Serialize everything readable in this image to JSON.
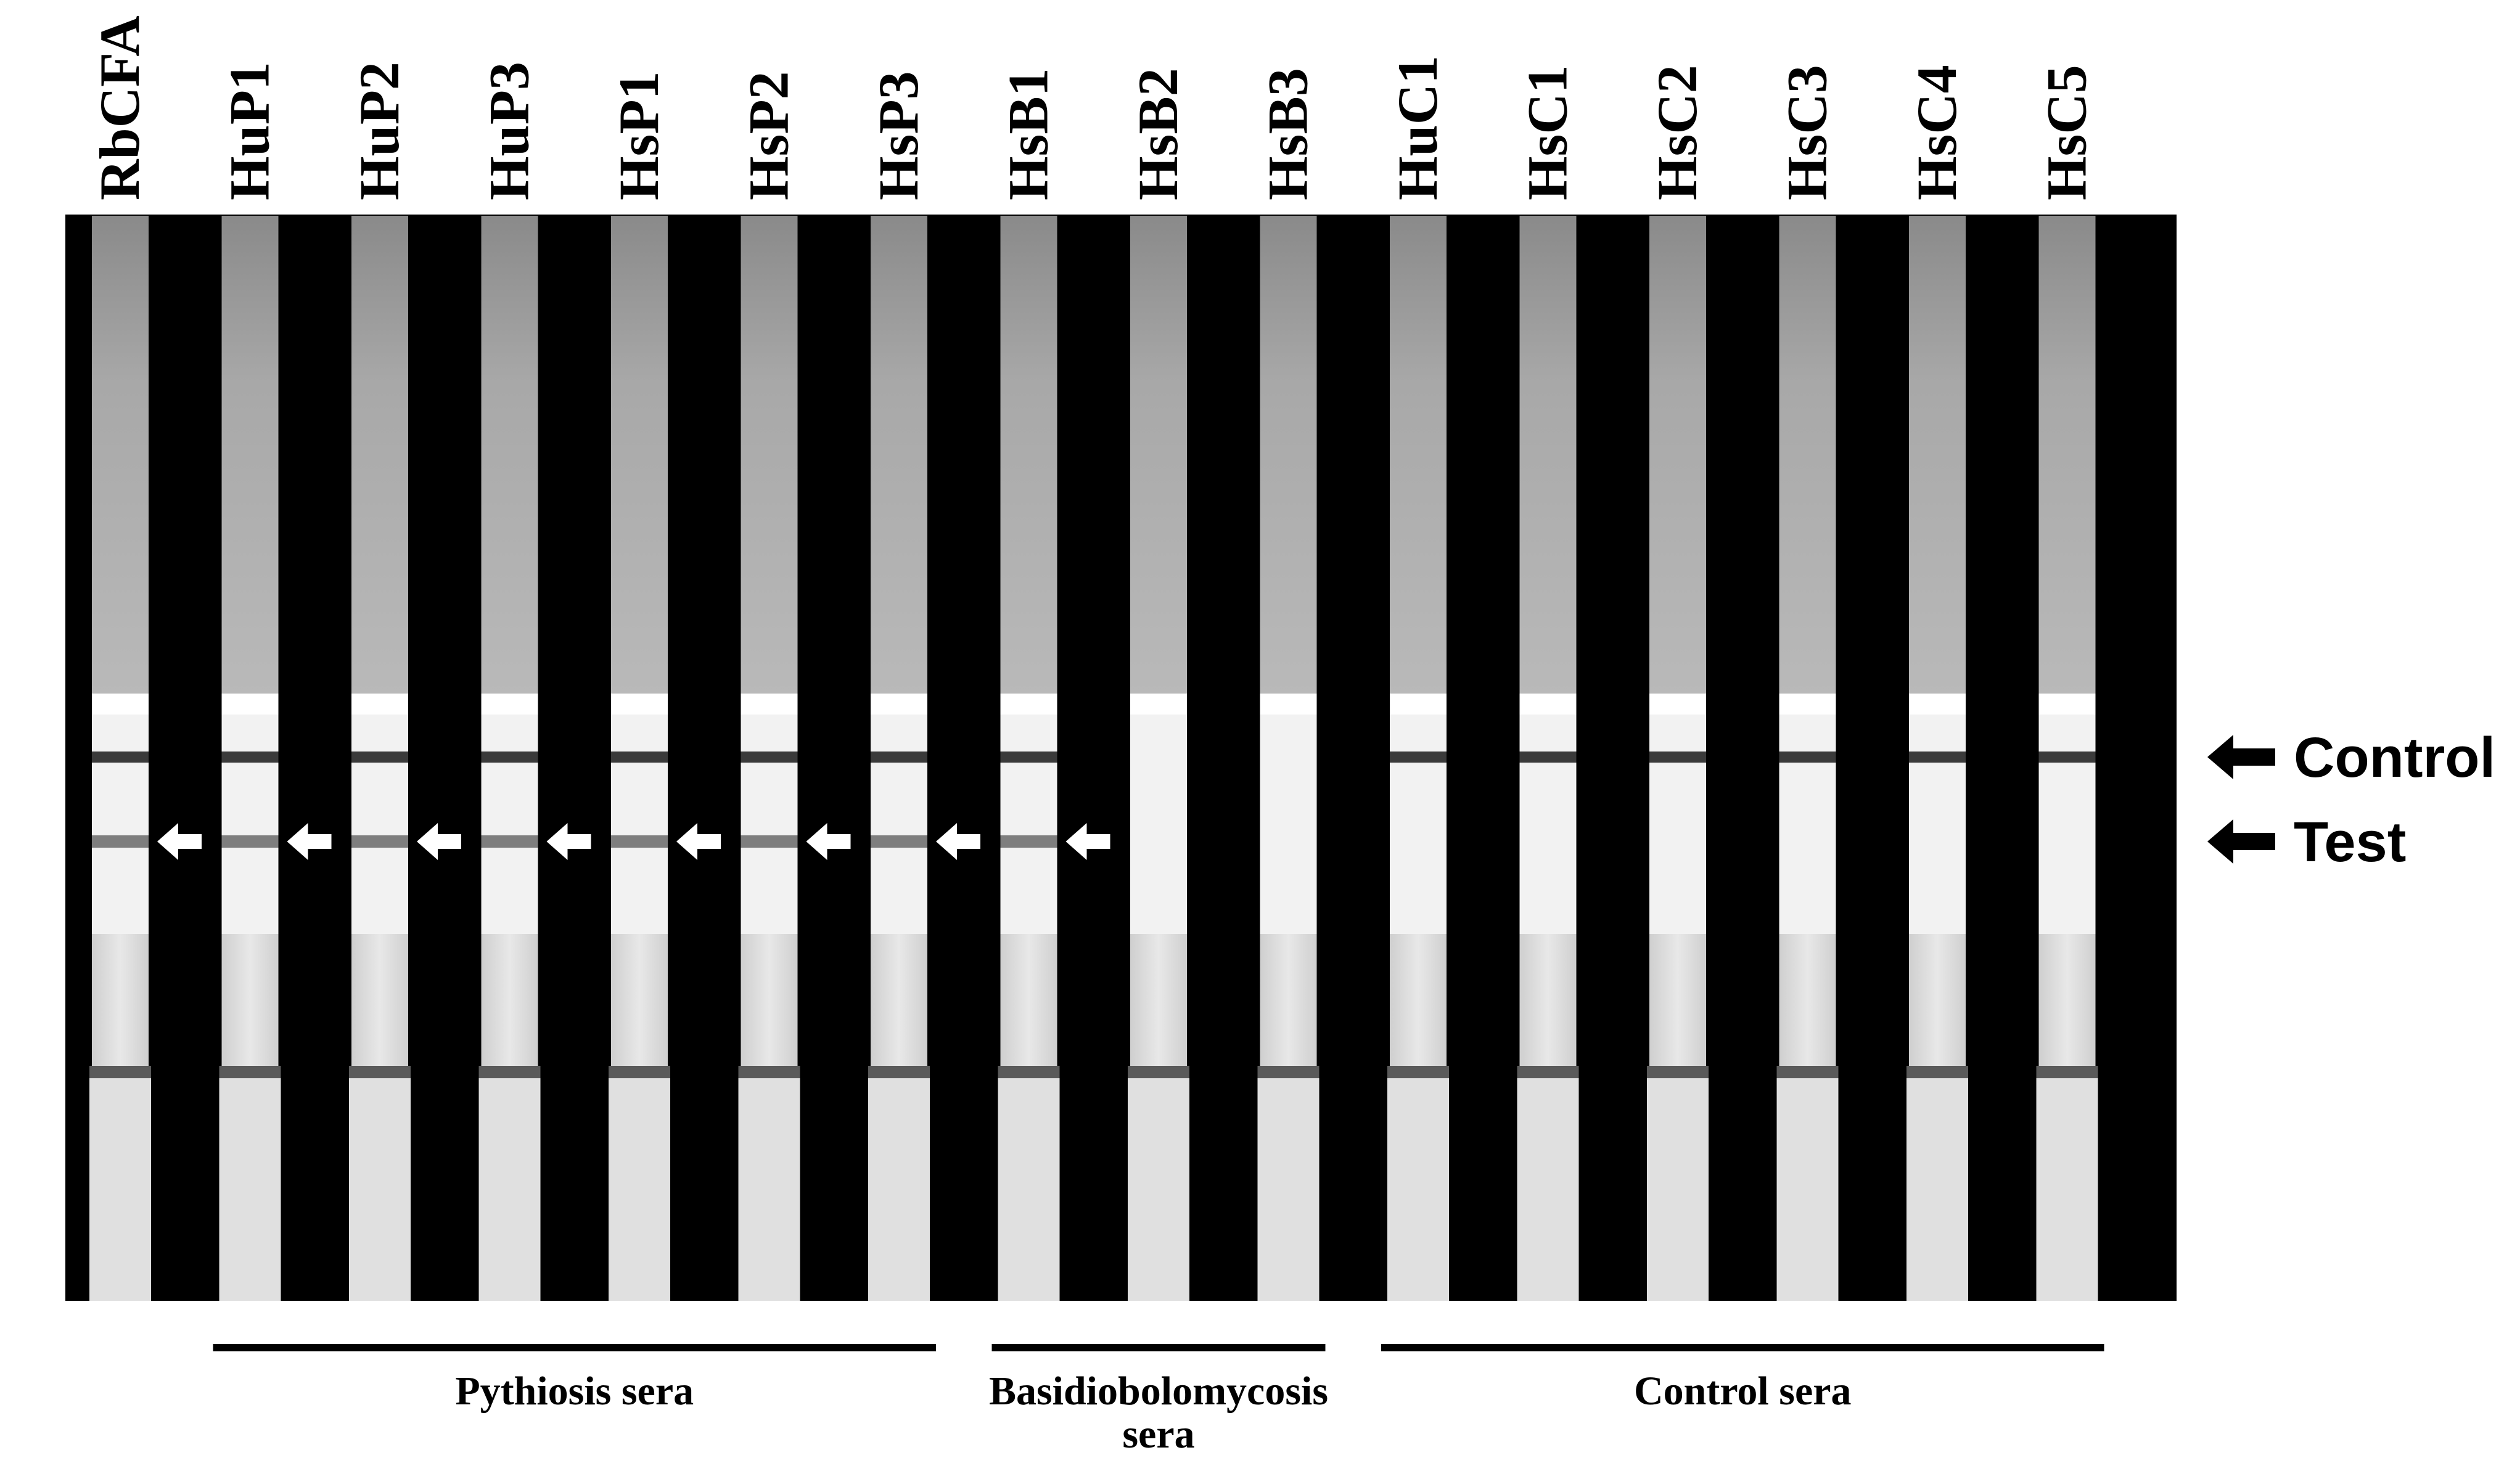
{
  "figure": {
    "lanes": [
      {
        "label": "RbCFA",
        "test_band": true,
        "control_band": true
      },
      {
        "label": "HuP1",
        "test_band": true,
        "control_band": true
      },
      {
        "label": "HuP2",
        "test_band": true,
        "control_band": true
      },
      {
        "label": "HuP3",
        "test_band": true,
        "control_band": true
      },
      {
        "label": "HsP1",
        "test_band": true,
        "control_band": true
      },
      {
        "label": "HsP2",
        "test_band": true,
        "control_band": true
      },
      {
        "label": "HsP3",
        "test_band": true,
        "control_band": true
      },
      {
        "label": "HsB1",
        "test_band": true,
        "control_band": true
      },
      {
        "label": "HsB2",
        "test_band": false,
        "control_band": false
      },
      {
        "label": "HsB3",
        "test_band": false,
        "control_band": false
      },
      {
        "label": "HuC1",
        "test_band": false,
        "control_band": true
      },
      {
        "label": "HsC1",
        "test_band": false,
        "control_band": true
      },
      {
        "label": "HsC2",
        "test_band": false,
        "control_band": true
      },
      {
        "label": "HsC3",
        "test_band": false,
        "control_band": true
      },
      {
        "label": "HsC4",
        "test_band": false,
        "control_band": true
      },
      {
        "label": "HsC5",
        "test_band": false,
        "control_band": true
      }
    ],
    "band_labels": {
      "control": "Control",
      "test": "Test"
    },
    "groups": [
      {
        "lines": [
          "Pythiosis sera"
        ],
        "first_lane": 1,
        "last_lane": 6
      },
      {
        "lines": [
          "Basidiobolomycosis",
          "sera"
        ],
        "first_lane": 7,
        "last_lane": 9
      },
      {
        "lines": [
          "Control sera"
        ],
        "first_lane": 10,
        "last_lane": 15
      }
    ],
    "colors": {
      "background": "#000000",
      "strip": "#e4e4e4",
      "band": "#3a3a3a",
      "arrow_white": "#ffffff",
      "arrow_black": "#000000"
    }
  }
}
